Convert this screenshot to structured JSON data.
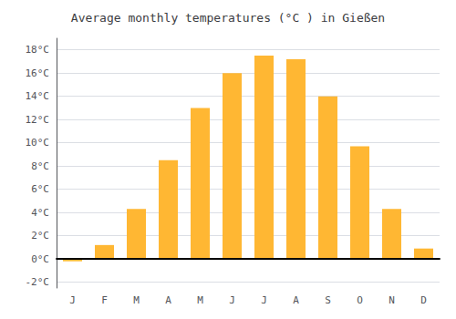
{
  "chart_data": {
    "type": "bar",
    "title": "Average monthly temperatures (°C ) in Gießen",
    "categories": [
      "J",
      "F",
      "M",
      "A",
      "M",
      "J",
      "J",
      "A",
      "S",
      "O",
      "N",
      "D"
    ],
    "values": [
      -0.2,
      1.2,
      4.3,
      8.5,
      13.0,
      16.0,
      17.5,
      17.2,
      14.0,
      9.7,
      4.3,
      0.9
    ],
    "color": "#FFB733",
    "ylim": [
      -2.5,
      19
    ],
    "yticks": [
      {
        "value": -2,
        "label": "-2°C"
      },
      {
        "value": 0,
        "label": "0°C"
      },
      {
        "value": 2,
        "label": "2°C"
      },
      {
        "value": 4,
        "label": "4°C"
      },
      {
        "value": 6,
        "label": "6°C"
      },
      {
        "value": 8,
        "label": "8°C"
      },
      {
        "value": 10,
        "label": "10°C"
      },
      {
        "value": 12,
        "label": "12°C"
      },
      {
        "value": 14,
        "label": "14°C"
      },
      {
        "value": 16,
        "label": "16°C"
      },
      {
        "value": 18,
        "label": "18°C"
      }
    ],
    "grid": true
  }
}
